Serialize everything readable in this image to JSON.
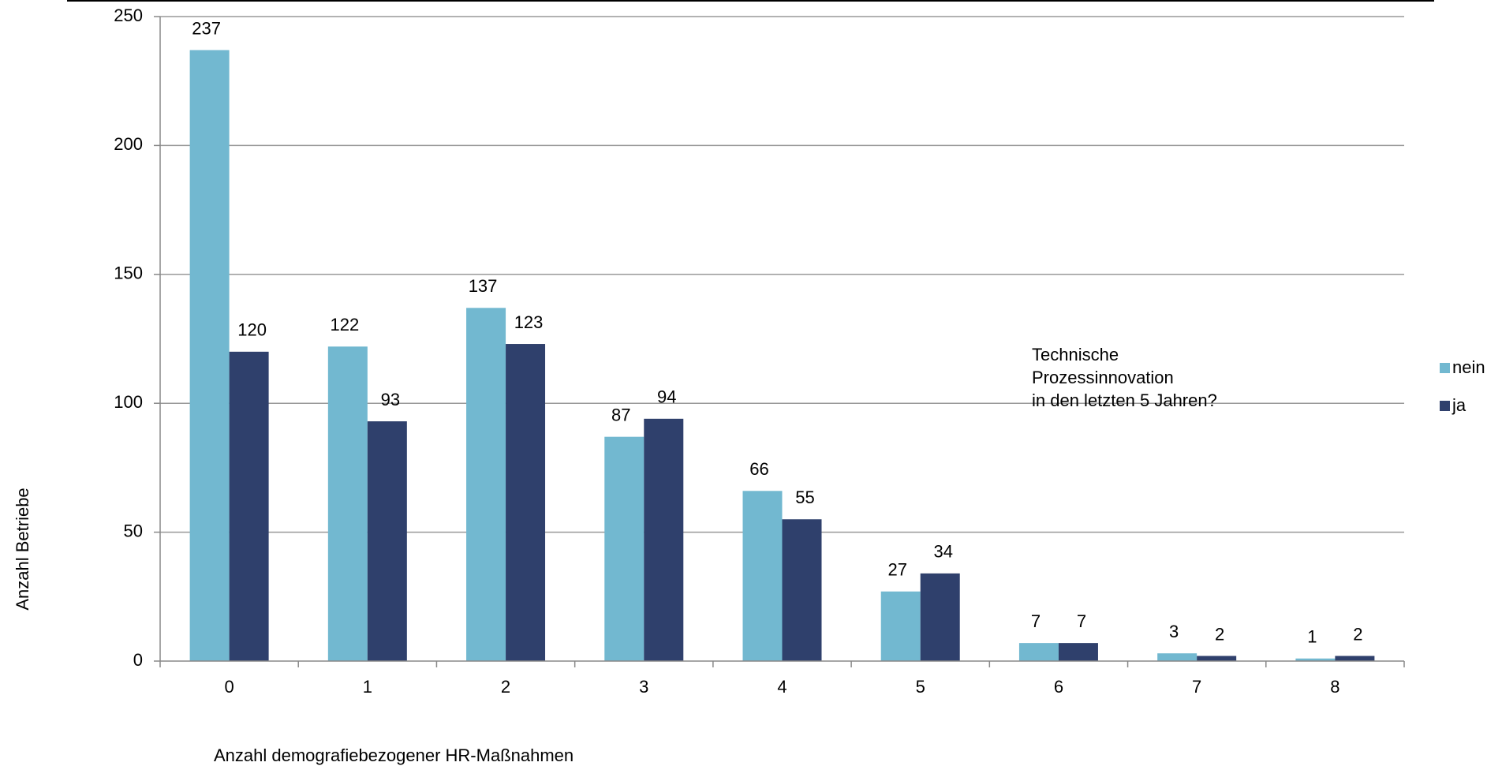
{
  "chart_data": {
    "type": "bar",
    "x_label": "Anzahl demografiebezogener HR-Maßnahmen",
    "y_label": "Anzahl Betriebe",
    "annotation": [
      "Technische",
      "Prozessinnovation",
      "in den letzten 5 Jahren?"
    ],
    "categories": [
      "0",
      "1",
      "2",
      "3",
      "4",
      "5",
      "6",
      "7",
      "8"
    ],
    "series": [
      {
        "name": "nein",
        "color": "#72b8d0",
        "values": [
          237,
          122,
          137,
          87,
          66,
          27,
          7,
          3,
          1
        ]
      },
      {
        "name": "ja",
        "color": "#2f406c",
        "values": [
          120,
          93,
          123,
          94,
          55,
          34,
          7,
          2,
          2
        ]
      }
    ],
    "ylim": [
      0,
      250
    ],
    "yticks": [
      0,
      50,
      100,
      150,
      200,
      250
    ],
    "grid": true,
    "legend": "right"
  }
}
